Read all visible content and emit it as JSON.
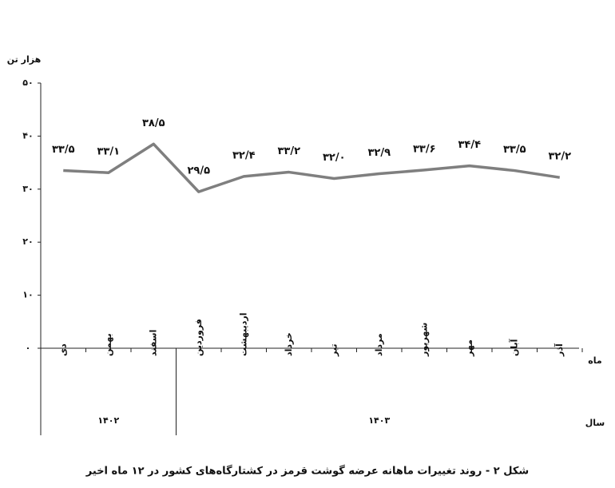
{
  "chart_data": {
    "type": "line",
    "title": "شکل ۲ - روند تغییرات ماهانه عرضه گوشت قرمز در کشتارگاه‌های کشور در ۱۲ ماه اخیر",
    "y_label": "هزار تن",
    "x_label": "ماه",
    "group_label": "سال",
    "groups": [
      "۱۴۰۲",
      "۱۴۰۳"
    ],
    "categories": [
      "دی",
      "بهمن",
      "اسفند",
      "فروردین",
      "اردیبهشت",
      "خرداد",
      "تیر",
      "مرداد",
      "شهریور",
      "مهر",
      "آبان",
      "آذر"
    ],
    "series": [
      {
        "name": "عرضه گوشت قرمز",
        "color": "#7f7f7f",
        "values": [
          33.5,
          33.1,
          38.5,
          29.5,
          32.4,
          33.2,
          32.0,
          32.9,
          33.6,
          34.4,
          33.5,
          32.2
        ],
        "value_labels": [
          "۳۳/۵",
          "۳۳/۱",
          "۳۸/۵",
          "۲۹/۵",
          "۳۲/۴",
          "۳۳/۲",
          "۳۲/۰",
          "۳۲/۹",
          "۳۳/۶",
          "۳۴/۴",
          "۳۳/۵",
          "۳۲/۲"
        ]
      }
    ],
    "ylim": [
      0,
      50
    ],
    "yticks": [
      {
        "value": 0,
        "label": "۰"
      },
      {
        "value": 10,
        "label": "۱۰"
      },
      {
        "value": 20,
        "label": "۲۰"
      },
      {
        "value": 30,
        "label": "۳۰"
      },
      {
        "value": 40,
        "label": "۴۰"
      },
      {
        "value": 50,
        "label": "۵۰"
      }
    ],
    "grid": false
  }
}
